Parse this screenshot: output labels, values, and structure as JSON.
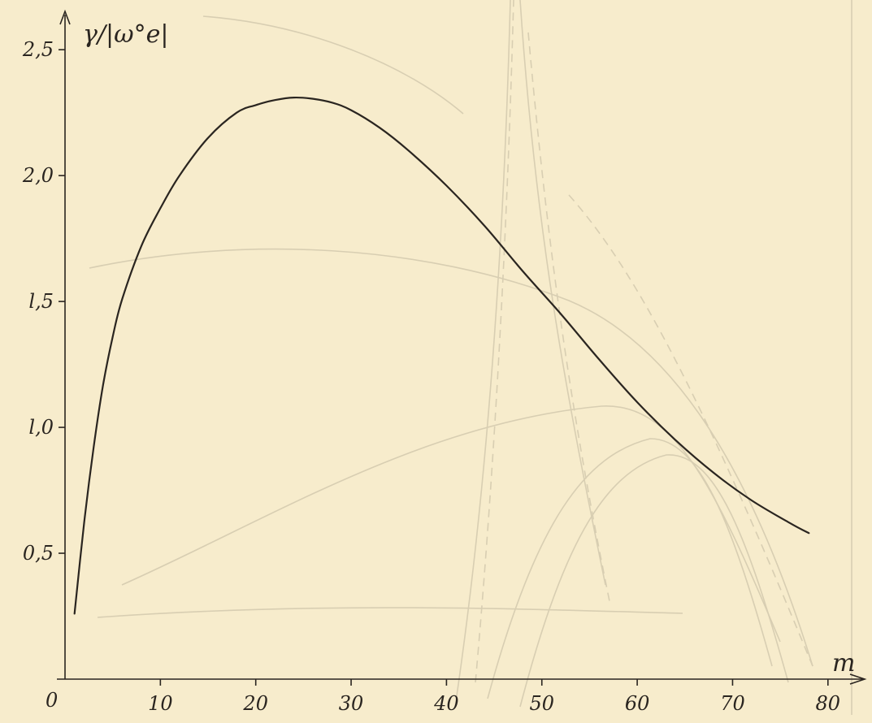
{
  "chart_data": {
    "type": "line",
    "ylabel": "γ/|ω°e|",
    "xlabel": "m",
    "origin_label": "0",
    "xlim": [
      0,
      83
    ],
    "ylim": [
      0,
      2.62
    ],
    "x_ticks": [
      10,
      20,
      30,
      40,
      50,
      60,
      70,
      80
    ],
    "x_tick_labels": [
      "10",
      "20",
      "30",
      "40",
      "50",
      "60",
      "70",
      "80"
    ],
    "y_ticks": [
      0.5,
      1.0,
      1.5,
      2.0,
      2.5
    ],
    "y_tick_labels": [
      "0,5",
      "l,0",
      "l,5",
      "2,0",
      "2,5"
    ],
    "grid": false,
    "series": [
      {
        "x": [
          1,
          2,
          3,
          4,
          5,
          6,
          8,
          10,
          12,
          15,
          18,
          20,
          22,
          24,
          26,
          28,
          30,
          33,
          36,
          40,
          44,
          48,
          52,
          56,
          60,
          64,
          68,
          72,
          76,
          78
        ],
        "y": [
          0.26,
          0.62,
          0.92,
          1.17,
          1.36,
          1.51,
          1.72,
          1.87,
          2.0,
          2.15,
          2.25,
          2.28,
          2.3,
          2.31,
          2.305,
          2.29,
          2.26,
          2.19,
          2.1,
          1.96,
          1.8,
          1.62,
          1.45,
          1.27,
          1.1,
          0.95,
          0.82,
          0.71,
          0.62,
          0.58
        ],
        "color": "#2a2520"
      }
    ]
  }
}
